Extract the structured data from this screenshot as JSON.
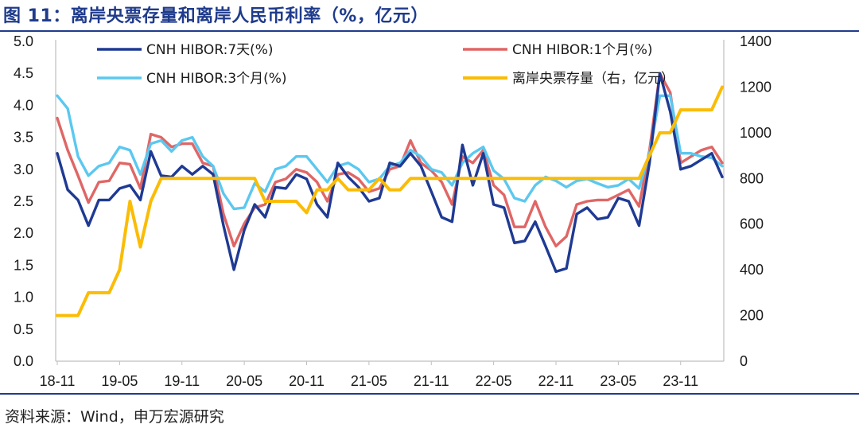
{
  "figure": {
    "title": "图 11：离岸央票存量和离岸人民币利率（%，亿元）",
    "source": "资料来源：Wind，申万宏源研究"
  },
  "chart_data": {
    "type": "line",
    "x_tick_labels": [
      "18-11",
      "19-05",
      "19-11",
      "20-05",
      "20-11",
      "21-05",
      "21-11",
      "22-05",
      "22-11",
      "23-05",
      "23-11"
    ],
    "x_start": "2018-11",
    "ylim_left": [
      0,
      5.0
    ],
    "yticks_left": [
      "5.0",
      "4.5",
      "4.0",
      "3.5",
      "3.0",
      "2.5",
      "2.0",
      "1.5",
      "1.0",
      "0.5",
      "0.0"
    ],
    "ylim_right": [
      0,
      1400
    ],
    "yticks_right": [
      "1400",
      "1200",
      "1000",
      "800",
      "600",
      "400",
      "200",
      "0"
    ],
    "grid": false,
    "legend_placement": "top",
    "series": [
      {
        "name": "CNH HIBOR:7天(%)",
        "axis": "left",
        "color": "#1f3a93",
        "values": [
          3.25,
          2.68,
          2.52,
          2.12,
          2.52,
          2.52,
          2.7,
          2.75,
          2.52,
          3.28,
          2.9,
          2.88,
          3.05,
          2.92,
          3.05,
          2.92,
          2.12,
          1.43,
          2.05,
          2.45,
          2.25,
          2.72,
          2.7,
          2.92,
          2.85,
          2.45,
          2.25,
          3.1,
          2.88,
          2.72,
          2.5,
          2.55,
          3.1,
          3.05,
          3.25,
          3.05,
          2.65,
          2.25,
          2.18,
          3.38,
          2.75,
          3.25,
          2.45,
          2.4,
          1.85,
          1.88,
          2.18,
          1.8,
          1.4,
          1.45,
          2.3,
          2.4,
          2.22,
          2.25,
          2.55,
          2.5,
          2.12,
          3.1,
          4.5,
          3.9,
          3.0,
          3.05,
          3.15,
          3.25,
          2.88
        ]
      },
      {
        "name": "CNH HIBOR:1个月(%)",
        "axis": "left",
        "color": "#e06666",
        "values": [
          3.8,
          3.3,
          2.9,
          2.48,
          2.8,
          2.82,
          3.1,
          3.08,
          2.7,
          3.55,
          3.5,
          3.35,
          3.4,
          3.4,
          3.1,
          3.05,
          2.3,
          1.8,
          2.15,
          2.4,
          2.45,
          2.8,
          2.85,
          3.0,
          2.95,
          2.8,
          2.5,
          2.92,
          2.95,
          2.85,
          2.65,
          2.7,
          3.0,
          3.05,
          3.45,
          3.1,
          2.98,
          2.8,
          2.45,
          3.2,
          3.1,
          3.3,
          2.75,
          2.6,
          2.1,
          2.1,
          2.5,
          2.1,
          1.8,
          1.95,
          2.45,
          2.5,
          2.52,
          2.52,
          2.6,
          2.68,
          2.42,
          3.3,
          4.5,
          4.2,
          3.1,
          3.2,
          3.3,
          3.35,
          3.1
        ]
      },
      {
        "name": "CNH HIBOR:3个月(%)",
        "axis": "left",
        "color": "#5bc8f0",
        "values": [
          4.15,
          3.95,
          3.2,
          2.9,
          3.05,
          3.1,
          3.35,
          3.3,
          2.92,
          3.4,
          3.45,
          3.28,
          3.45,
          3.5,
          3.2,
          3.05,
          2.62,
          2.38,
          2.4,
          2.78,
          2.65,
          3.0,
          3.05,
          3.2,
          3.2,
          3.0,
          2.8,
          3.05,
          3.1,
          3.0,
          2.8,
          2.85,
          3.05,
          3.1,
          3.3,
          3.2,
          3.0,
          2.95,
          2.75,
          3.1,
          3.25,
          3.35,
          2.98,
          2.85,
          2.55,
          2.5,
          2.75,
          2.88,
          2.82,
          2.72,
          2.82,
          2.85,
          2.78,
          2.72,
          2.75,
          2.85,
          2.7,
          3.25,
          4.15,
          4.15,
          3.25,
          3.25,
          3.2,
          3.18,
          3.05
        ]
      },
      {
        "name": "离岸央票存量（右，亿元）",
        "axis": "right",
        "color": "#fbbc05",
        "values": [
          200,
          200,
          200,
          300,
          300,
          300,
          400,
          700,
          500,
          700,
          800,
          800,
          800,
          800,
          800,
          800,
          800,
          800,
          800,
          800,
          700,
          700,
          700,
          700,
          650,
          750,
          750,
          800,
          750,
          750,
          750,
          800,
          750,
          750,
          800,
          800,
          800,
          800,
          800,
          800,
          800,
          800,
          800,
          800,
          800,
          800,
          800,
          800,
          800,
          800,
          800,
          800,
          800,
          800,
          800,
          800,
          800,
          900,
          1000,
          1000,
          1100,
          1100,
          1100,
          1100,
          1200
        ]
      }
    ]
  }
}
